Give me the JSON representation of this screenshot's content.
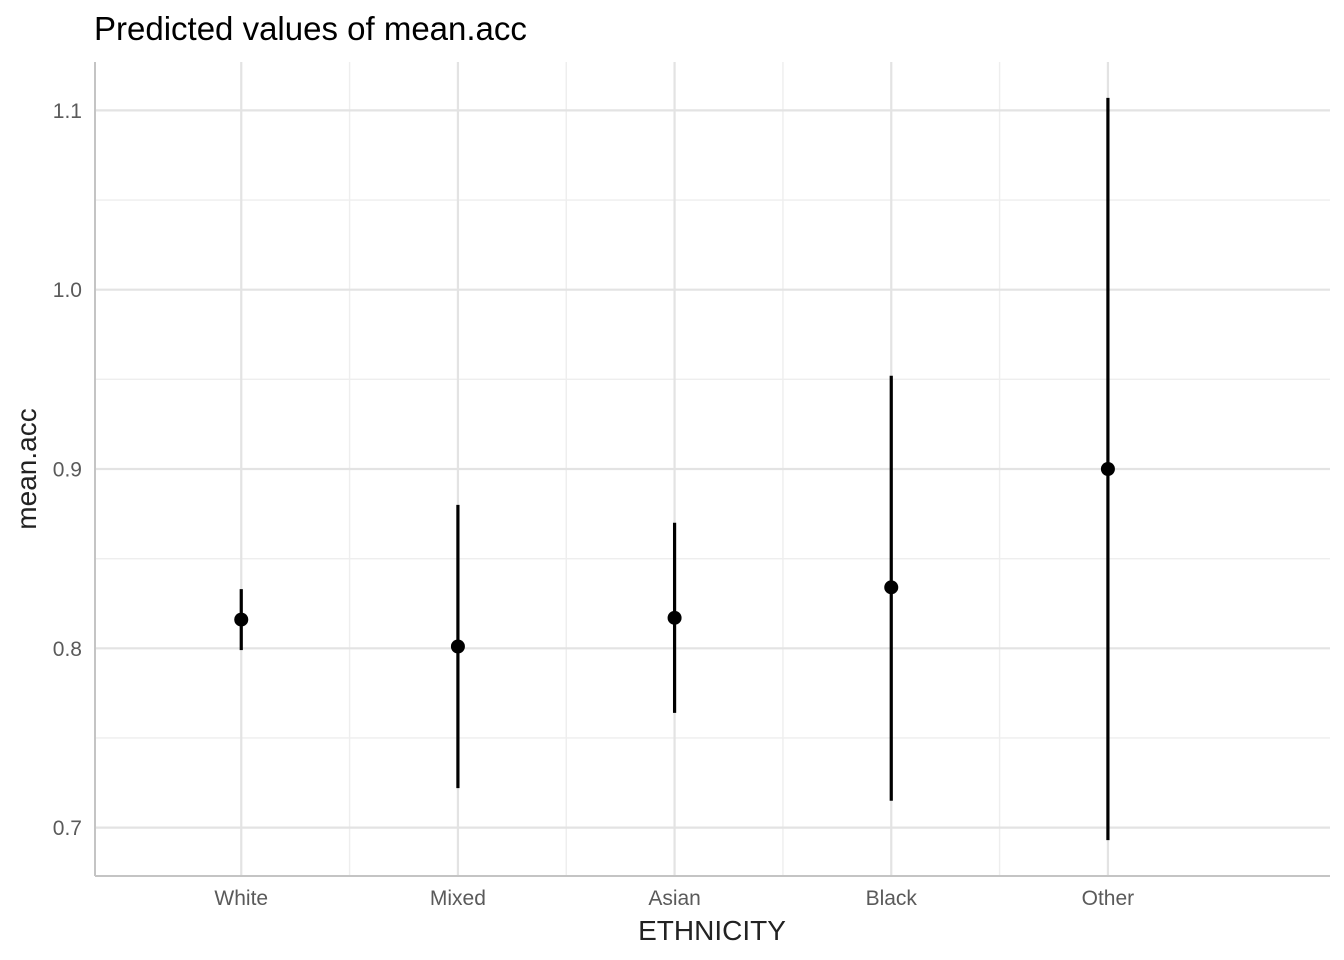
{
  "chart_data": {
    "type": "scatter",
    "title": "Predicted values of mean.acc",
    "xlabel": "ETHNICITY",
    "ylabel": "mean.acc",
    "categories": [
      "White",
      "Mixed",
      "Asian",
      "Black",
      "Other"
    ],
    "series": [
      {
        "values": [
          0.816,
          0.801,
          0.817,
          0.834,
          0.9
        ],
        "ci_low": [
          0.799,
          0.722,
          0.764,
          0.715,
          0.693
        ],
        "ci_high": [
          0.833,
          0.88,
          0.87,
          0.952,
          1.107
        ]
      }
    ],
    "ylim": [
      0.673,
      1.127
    ],
    "yticks": [
      "0.7",
      "0.8",
      "0.9",
      "1.0",
      "1.1"
    ],
    "grid": true,
    "colors": {
      "points": "#000000",
      "grid": "#e3e3e3",
      "axis": "#c4c4c4"
    }
  }
}
